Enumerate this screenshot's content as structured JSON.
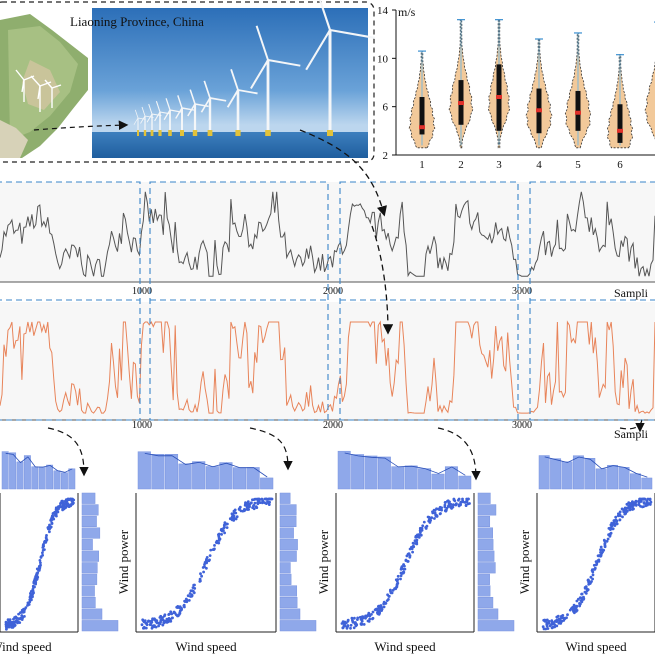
{
  "top": {
    "photo_title": "Liaoning Province, China",
    "violin": {
      "unit": "m/s",
      "y_ticks": [
        "2",
        "6",
        "10",
        "14"
      ],
      "x_labels": [
        "1",
        "2",
        "3",
        "4",
        "5",
        "6"
      ]
    }
  },
  "series": {
    "x_ticks": [
      "1000",
      "2000",
      "3000"
    ],
    "speed_axis_label": "Sampli",
    "power_axis_label": "Sampli"
  },
  "bottom": {
    "x_label": "Wind speed",
    "y_label": "Wind power"
  },
  "colors": {
    "speed_line": "#555555",
    "power_line": "#e8845a",
    "violin_fill": "#f2c99a",
    "scatter": "#3f62d8",
    "hist": "#8fa8ea",
    "dashed_box": "#3a86c9"
  }
}
